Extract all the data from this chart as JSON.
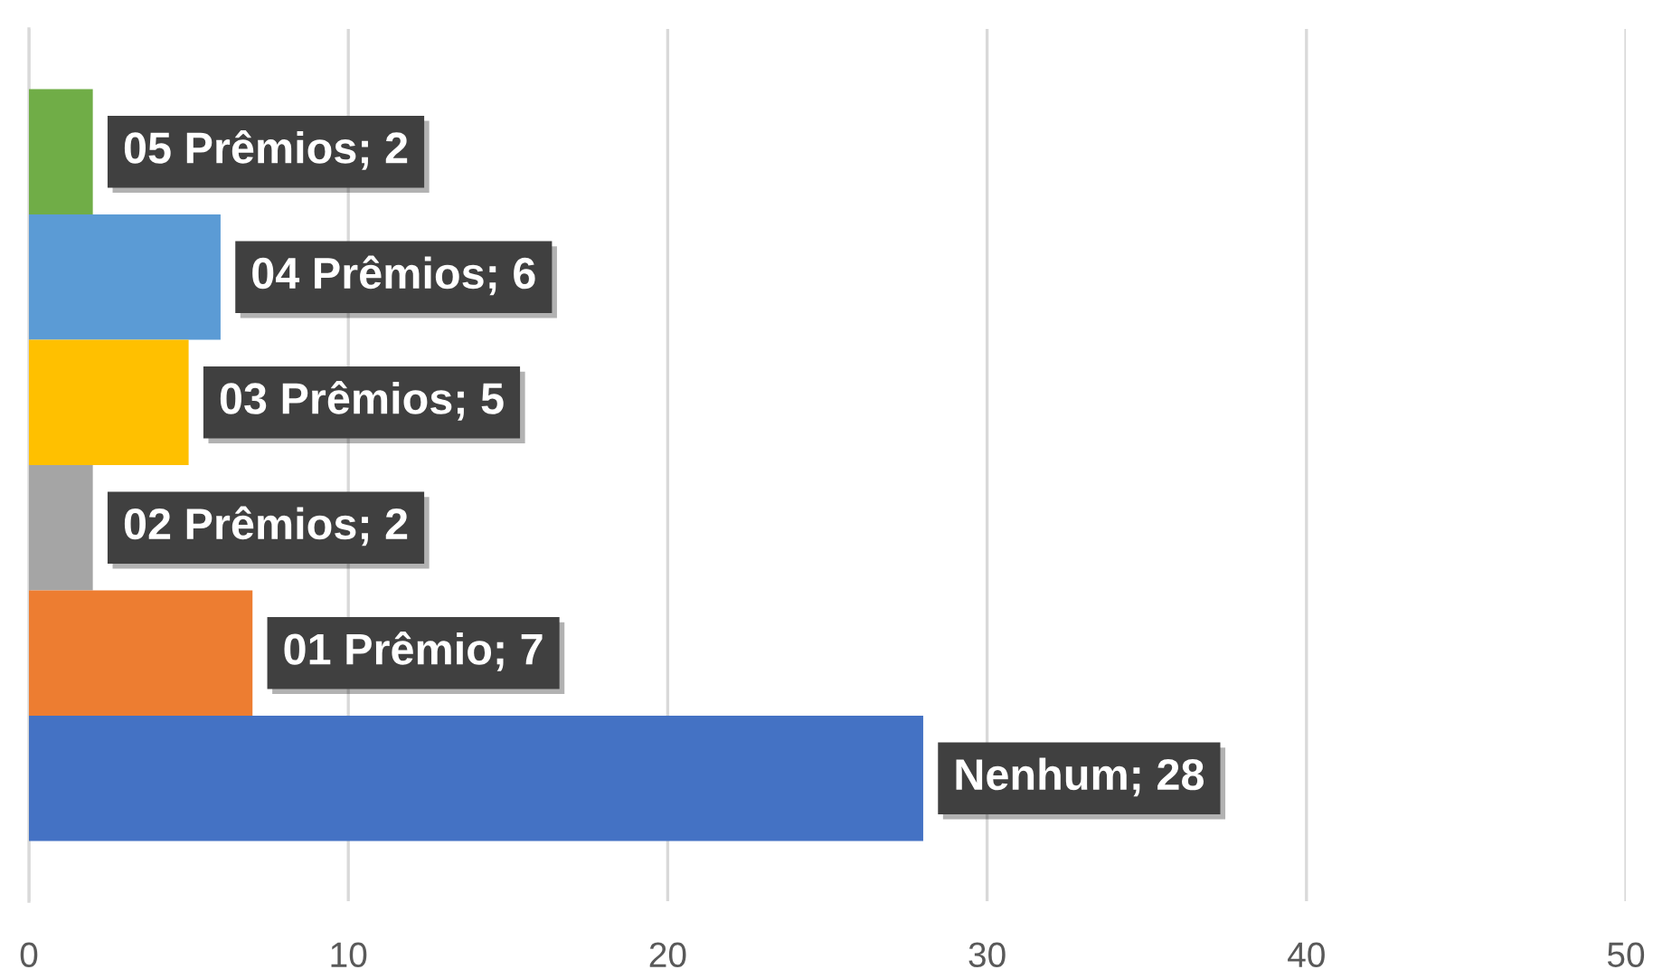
{
  "chart_data": {
    "type": "bar",
    "orientation": "horizontal",
    "categories": [
      null,
      null,
      null,
      null,
      null,
      null
    ],
    "values": [
      2,
      6,
      5,
      2,
      7,
      28
    ],
    "colors": [
      "#70ad47",
      "#5b9bd5",
      "#ffc000",
      "#a5a5a5",
      "#ed7d31",
      "#4472c4"
    ],
    "value_labels": [
      "05 Prêmios; 2",
      "04 Prêmios; 6",
      "03 Prêmios; 5",
      "02 Prêmios; 2",
      "01 Prêmio; 7",
      "Nenhum; 28"
    ],
    "xlim": [
      0,
      50
    ],
    "xticks": [
      0,
      10,
      20,
      30,
      40,
      50
    ],
    "grid": "x",
    "tick_labels": "x"
  }
}
